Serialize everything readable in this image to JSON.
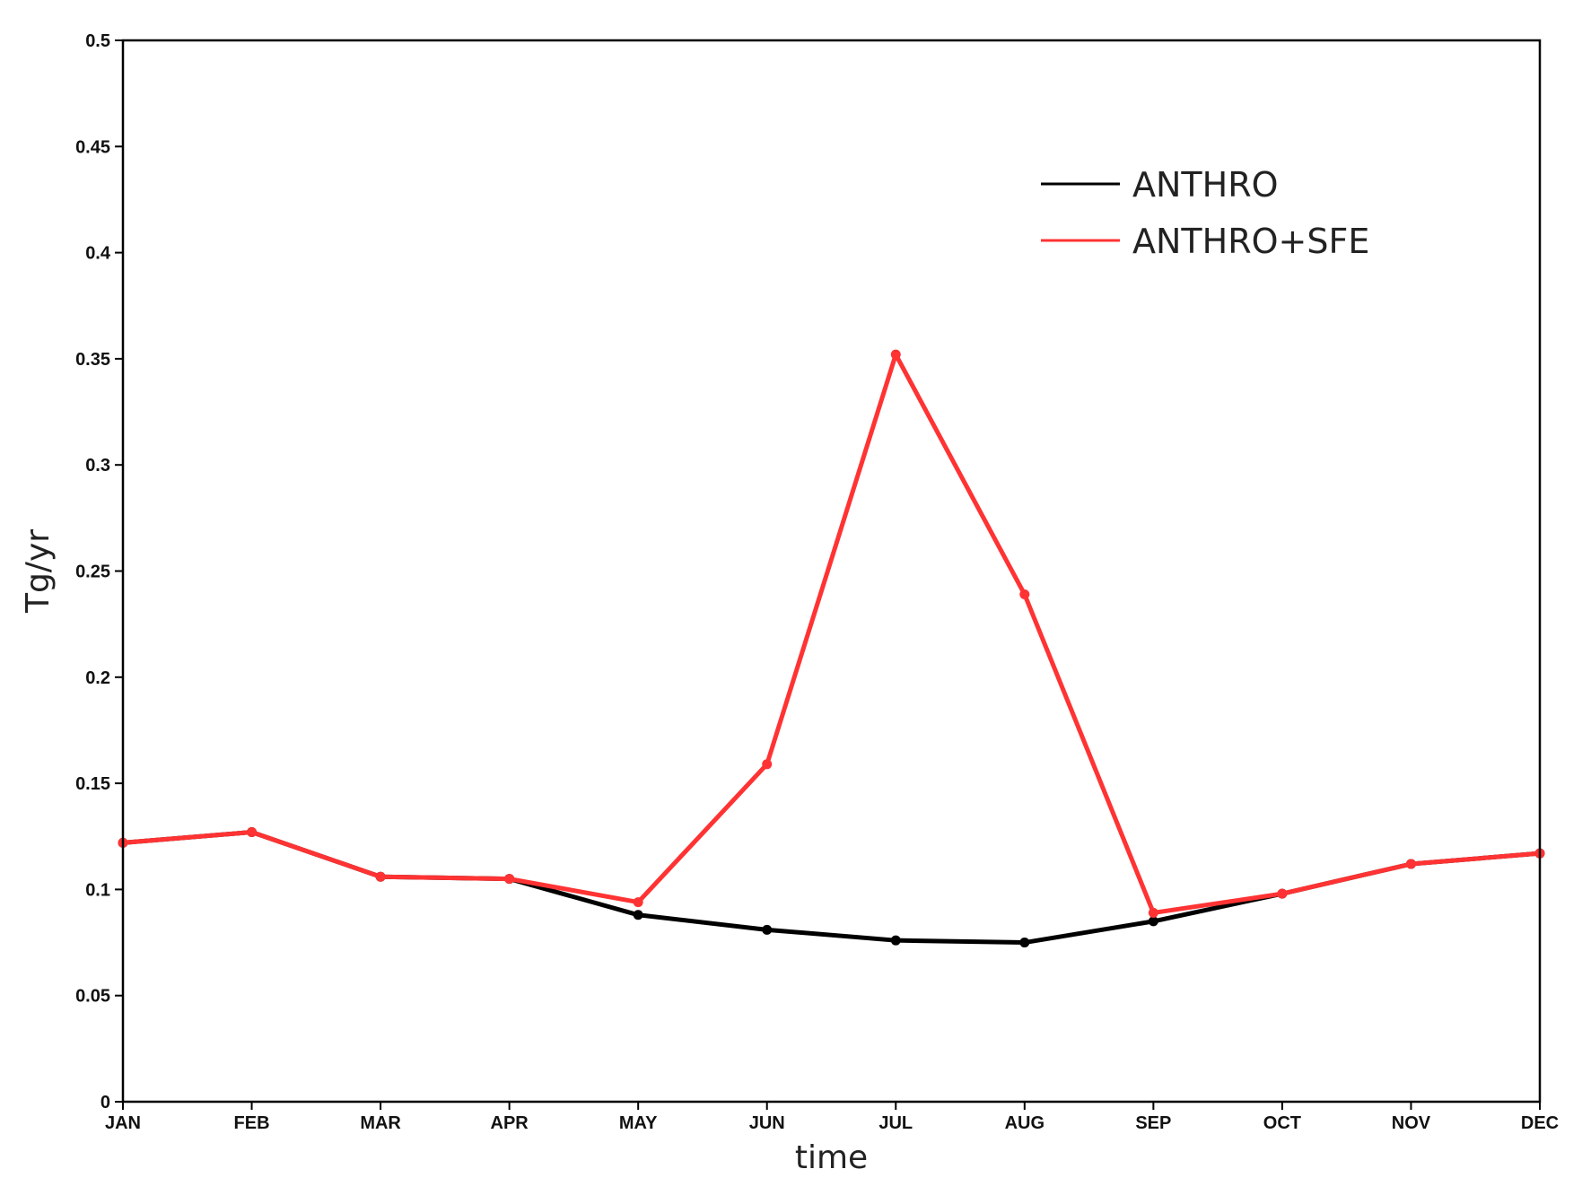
{
  "chart_data": {
    "type": "line",
    "title": "",
    "xlabel": "time",
    "ylabel": "Tg/yr",
    "ylim": [
      0,
      0.5
    ],
    "yticks": [
      "0",
      "0.05",
      "0.1",
      "0.15",
      "0.2",
      "0.25",
      "0.3",
      "0.35",
      "0.4",
      "0.45",
      "0.5"
    ],
    "categories": [
      "JAN",
      "FEB",
      "MAR",
      "APR",
      "MAY",
      "JUN",
      "JUL",
      "AUG",
      "SEP",
      "OCT",
      "NOV",
      "DEC"
    ],
    "grid": false,
    "legend_position": "top-right",
    "series": [
      {
        "name": "ANTHRO",
        "color": "#000000",
        "values": [
          0.122,
          0.127,
          0.106,
          0.105,
          0.088,
          0.081,
          0.076,
          0.075,
          0.085,
          0.098,
          0.112,
          0.117
        ]
      },
      {
        "name": "ANTHRO+SFE",
        "color": "#ff3333",
        "values": [
          0.122,
          0.127,
          0.106,
          0.105,
          0.094,
          0.159,
          0.352,
          0.239,
          0.089,
          0.098,
          0.112,
          0.117
        ]
      }
    ]
  }
}
